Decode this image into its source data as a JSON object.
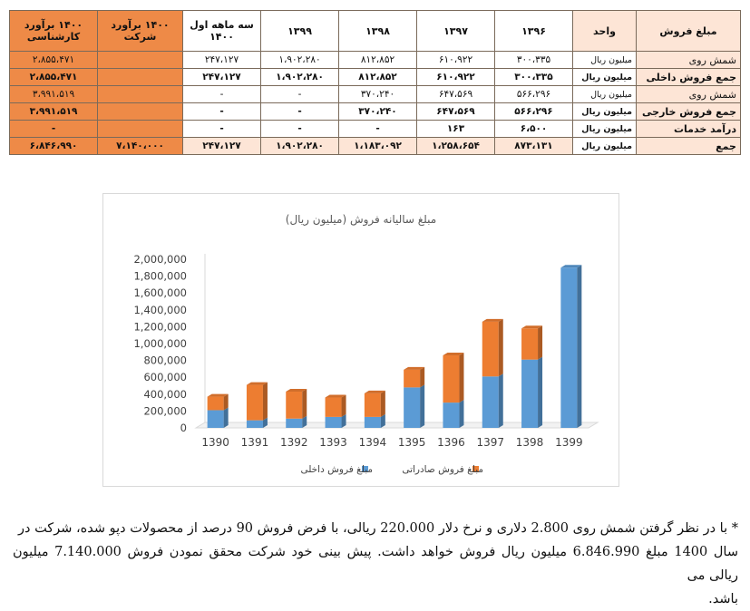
{
  "table": {
    "headers": [
      "مبلغ فروش",
      "واحد",
      "۱۳۹۶",
      "۱۳۹۷",
      "۱۳۹۸",
      "۱۳۹۹",
      "سه ماهه اول ۱۴۰۰",
      "۱۴۰۰ برآورد شرکت",
      "۱۴۰۰ برآورد کارشناسی"
    ],
    "rows": [
      {
        "label": "شمش روی",
        "unit": "میلیون ریال",
        "cells": [
          "۳۰۰،۳۳۵",
          "۶۱۰،۹۲۲",
          "۸۱۲،۸۵۲",
          "۱،۹۰۲،۲۸۰",
          "۲۴۷،۱۲۷",
          "",
          "۲،۸۵۵،۴۷۱"
        ],
        "bold": false
      },
      {
        "label": "جمع فروش داخلی",
        "unit": "میلیون ریال",
        "cells": [
          "۳۰۰،۳۳۵",
          "۶۱۰،۹۲۲",
          "۸۱۲،۸۵۲",
          "۱،۹۰۲،۲۸۰",
          "۲۴۷،۱۲۷",
          "",
          "۲،۸۵۵،۴۷۱"
        ],
        "bold": true
      },
      {
        "label": "شمش روی",
        "unit": "میلیون ریال",
        "cells": [
          "۵۶۶،۲۹۶",
          "۶۴۷،۵۶۹",
          "۳۷۰،۲۴۰",
          "-",
          "-",
          "",
          "۳،۹۹۱،۵۱۹"
        ],
        "bold": false
      },
      {
        "label": "جمع فروش خارجی",
        "unit": "میلیون ریال",
        "cells": [
          "۵۶۶،۲۹۶",
          "۶۴۷،۵۶۹",
          "۳۷۰،۲۴۰",
          "-",
          "-",
          "",
          "۳،۹۹۱،۵۱۹"
        ],
        "bold": true
      },
      {
        "label": "درآمد خدمات",
        "unit": "میلیون ریال",
        "cells": [
          "۶،۵۰۰",
          "۱۶۳",
          "-",
          "-",
          "-",
          "",
          "-"
        ],
        "bold": true
      },
      {
        "label": "جمع",
        "unit": "میلیون ریال",
        "cells": [
          "۸۷۳،۱۳۱",
          "۱،۲۵۸،۶۵۴",
          "۱،۱۸۳،۰۹۲",
          "۱،۹۰۲،۲۸۰",
          "۲۴۷،۱۲۷",
          "۷،۱۴۰،۰۰۰",
          "۶،۸۴۶،۹۹۰"
        ],
        "bold": true,
        "total": true
      }
    ]
  },
  "chart_data": {
    "type": "bar",
    "stacked": true,
    "title": "مبلغ سالیانه فروش (میلیون ریال)",
    "categories": [
      "1390",
      "1391",
      "1392",
      "1393",
      "1394",
      "1395",
      "1396",
      "1397",
      "1398",
      "1399"
    ],
    "series": [
      {
        "name": "مبلغ فروش داخلی",
        "color": "#5b9bd5",
        "values": [
          210000,
          90000,
          110000,
          130000,
          130000,
          480000,
          300000,
          610000,
          810000,
          1900000
        ]
      },
      {
        "name": "مبلغ فروش صادراتی",
        "color": "#ed7d31",
        "values": [
          160000,
          420000,
          320000,
          230000,
          280000,
          210000,
          560000,
          650000,
          370000,
          0
        ]
      }
    ],
    "yticks": [
      "0",
      "200,000",
      "400,000",
      "600,000",
      "800,000",
      "1,000,000",
      "1,200,000",
      "1,400,000",
      "1,600,000",
      "1,800,000",
      "2,000,000"
    ],
    "ylim": [
      0,
      2000000
    ],
    "legend_position": "bottom",
    "grid": false
  },
  "note": {
    "lines": [
      "* با در نظر گرفتن شمش روی 2.800 دلاری و نرخ دلار 220.000 ریالی، با فرض فروش 90 درصد از محصولات دپو شده، شرکت در",
      "سال 1400 مبلغ 6.846.990 میلیون ریال فروش خواهد داشت. پیش بینی خود شرکت محقق نمودن فروش 7.140.000 میلیون ریالی می",
      "باشد."
    ]
  }
}
